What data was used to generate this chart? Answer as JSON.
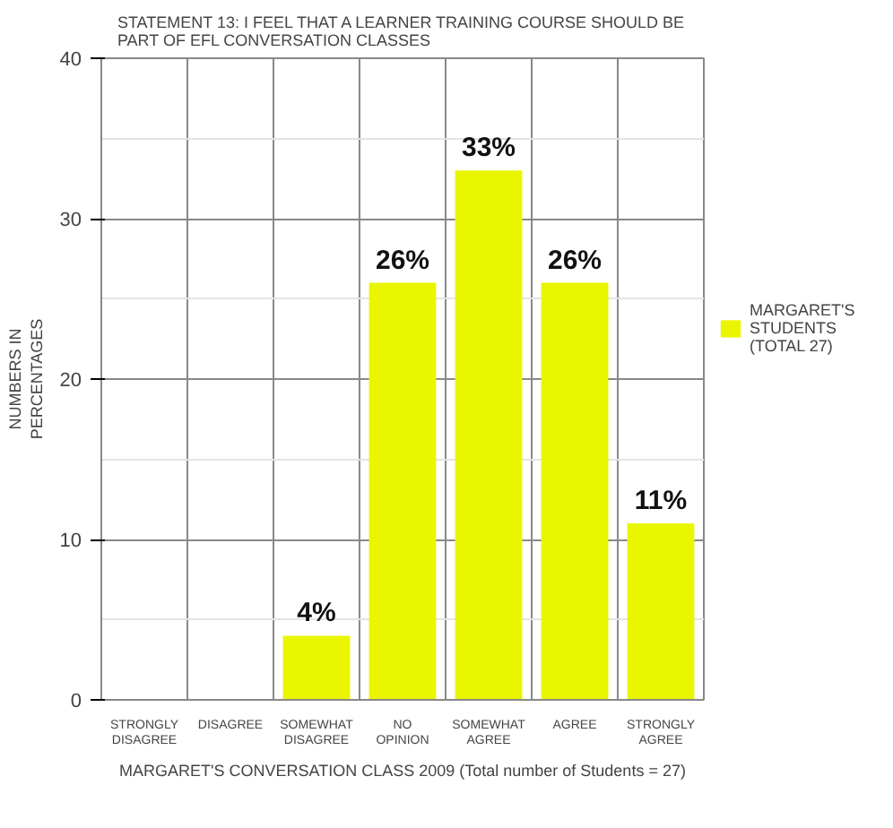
{
  "chart_data": {
    "type": "bar",
    "title": "STATEMENT 13: I FEEL THAT A LEARNER TRAINING COURSE SHOULD BE PART OF EFL CONVERSATION CLASSES",
    "xlabel": "MARGARET'S CONVERSATION CLASS 2009 (Total number of Students = 27)",
    "ylabel": "NUMBERS IN PERCENTAGES",
    "categories": [
      "STRONGLY DISAGREE",
      "DISAGREE",
      "SOMEWHAT DISAGREE",
      "NO OPINION",
      "SOMEWHAT AGREE",
      "AGREE",
      "STRONGLY AGREE"
    ],
    "series": [
      {
        "name": "MARGARET'S STUDENTS (TOTAL 27)",
        "color": "#eaf600",
        "values": [
          0,
          0,
          4,
          26,
          33,
          26,
          11
        ],
        "value_labels": [
          null,
          null,
          "4%",
          "26%",
          "33%",
          "26%",
          "11%"
        ]
      }
    ],
    "ylim": [
      0,
      40
    ],
    "yticks": [
      0,
      10,
      20,
      30,
      40
    ],
    "grid": true,
    "legend": "right"
  }
}
